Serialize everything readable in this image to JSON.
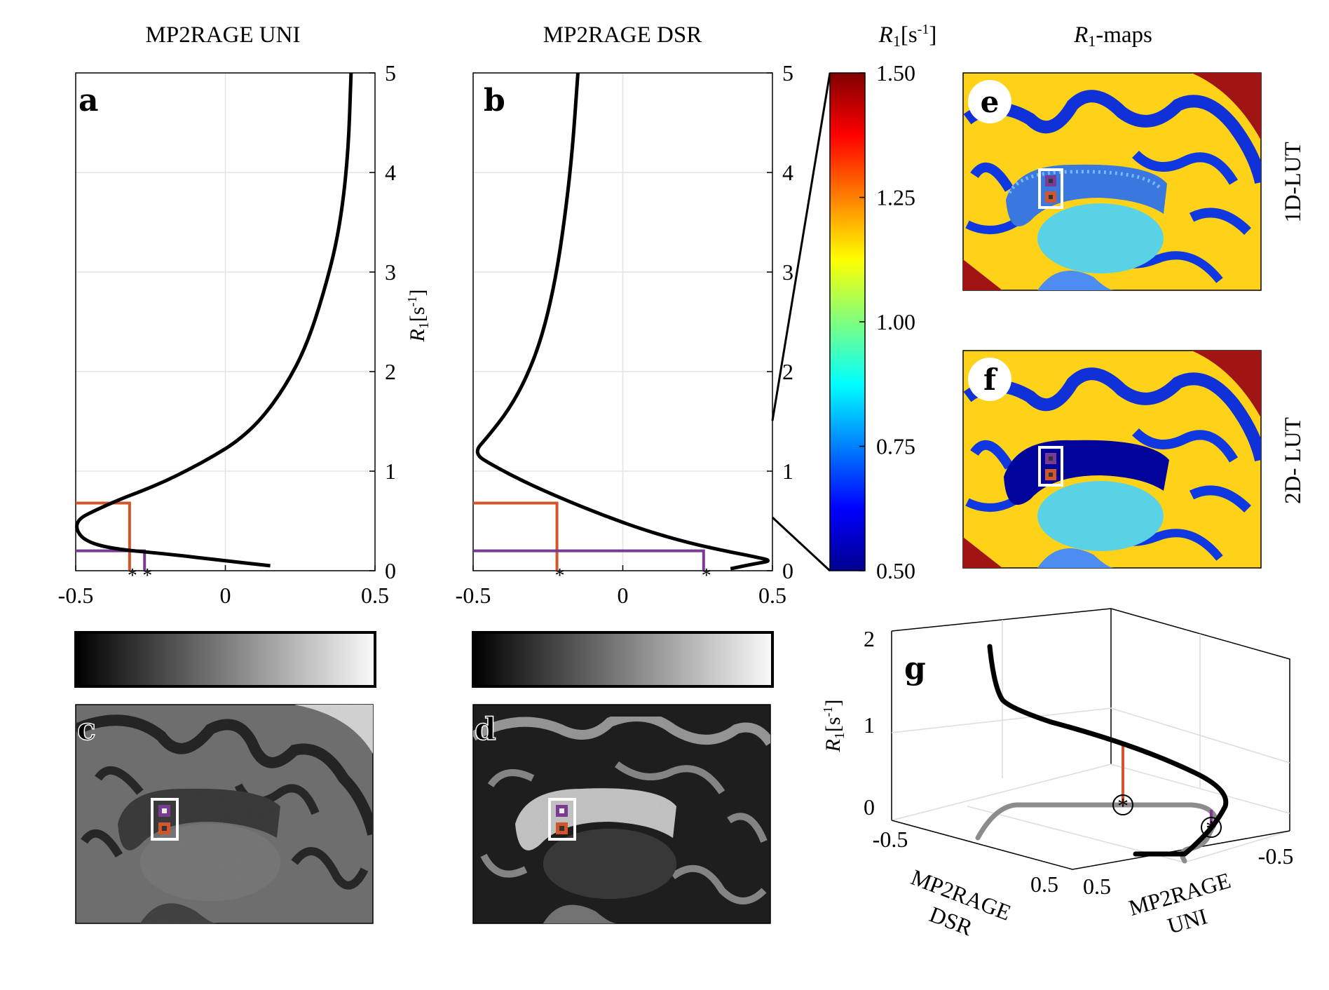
{
  "titles": {
    "uni": "MP2RAGE UNI",
    "dsr": "MP2RAGE DSR",
    "colorbar": "R",
    "colorbar_sub": "1",
    "colorbar_unit": "[s",
    "colorbar_unit_exp": "-1",
    "colorbar_unit_end": "]",
    "maps": "R",
    "maps_sub": "1",
    "maps_suffix": "-maps"
  },
  "row_labels": {
    "lut1d": "1D-LUT",
    "lut2d": "2D- LUT"
  },
  "panel_letters": {
    "a": "a",
    "b": "b",
    "c": "c",
    "d": "d",
    "e": "e",
    "f": "f",
    "g": "g"
  },
  "axis_labels": {
    "r1": "R",
    "r1_sub": "1",
    "r1_unit": "[s",
    "r1_unit_exp": "-1",
    "r1_unit_end": "]",
    "g_dsr_line1": "MP2RAGE",
    "g_dsr_line2": "DSR",
    "g_uni_line1": "MP2RAGE",
    "g_uni_line2": "UNI"
  },
  "colors": {
    "orange": "#d3562a",
    "purple": "#7a3b93",
    "curve": "#000000",
    "projection": "#8c8c8c"
  },
  "colorbar_ticks": [
    "1.50",
    "1.25",
    "1.00",
    "0.75",
    "0.50"
  ],
  "g_ticks": {
    "z": [
      "2",
      "1",
      "0"
    ],
    "dsr": [
      "-0.5",
      "0.5"
    ],
    "uni": [
      "0.5",
      "-0.5"
    ]
  },
  "chart_data": [
    {
      "id": "a",
      "type": "line",
      "title": "MP2RAGE UNI",
      "ylabel": "R1 [s-1]",
      "xlim": [
        -0.5,
        0.5
      ],
      "ylim": [
        0,
        5
      ],
      "xticks": [
        "-0.5",
        "0",
        "0.5"
      ],
      "yticks": [
        "0",
        "1",
        "2",
        "3",
        "4",
        "5"
      ],
      "grid": true,
      "x": [
        0.15,
        0.0,
        -0.2,
        -0.38,
        -0.47,
        -0.5,
        -0.49,
        -0.44,
        -0.35,
        -0.28,
        -0.2,
        -0.12,
        -0.04,
        0.04,
        0.12,
        0.2,
        0.27,
        0.33,
        0.38,
        0.41,
        0.42
      ],
      "y": [
        0.05,
        0.1,
        0.17,
        0.22,
        0.3,
        0.42,
        0.52,
        0.6,
        0.72,
        0.8,
        0.9,
        1.02,
        1.15,
        1.3,
        1.52,
        1.85,
        2.25,
        2.8,
        3.4,
        4.15,
        5.0
      ],
      "markers": [
        {
          "color": "orange",
          "x": -0.32,
          "y": 0.68
        },
        {
          "color": "purple",
          "x": -0.27,
          "y": 0.2
        }
      ]
    },
    {
      "id": "b",
      "type": "line",
      "title": "MP2RAGE DSR",
      "ylabel": "R1 [s-1]",
      "xlim": [
        -0.5,
        0.5
      ],
      "ylim": [
        0,
        5
      ],
      "xticks": [
        "-0.5",
        "0",
        "0.5"
      ],
      "yticks": [
        "0",
        "1",
        "2",
        "3",
        "4",
        "5"
      ],
      "grid": true,
      "x": [
        0.36,
        0.44,
        0.5,
        0.44,
        0.34,
        0.22,
        0.08,
        -0.06,
        -0.2,
        -0.32,
        -0.43,
        -0.5,
        -0.45,
        -0.38,
        -0.32,
        -0.27,
        -0.23,
        -0.2,
        -0.17,
        -0.15
      ],
      "y": [
        0.02,
        0.07,
        0.1,
        0.14,
        0.2,
        0.28,
        0.4,
        0.55,
        0.72,
        0.88,
        1.05,
        1.18,
        1.35,
        1.62,
        1.95,
        2.35,
        2.85,
        3.4,
        4.15,
        5.0
      ],
      "markers": [
        {
          "color": "orange",
          "x": -0.22,
          "y": 0.68
        },
        {
          "color": "purple",
          "x": 0.27,
          "y": 0.2
        }
      ]
    },
    {
      "id": "colorbar",
      "type": "heatmap",
      "colormap": "jet",
      "range": [
        0.5,
        1.5
      ]
    },
    {
      "id": "g",
      "type": "line",
      "zlabel": "R1 [s-1]",
      "zlim": [
        0,
        2
      ],
      "zticks": [
        "0",
        "1",
        "2"
      ],
      "grid": true
    }
  ]
}
